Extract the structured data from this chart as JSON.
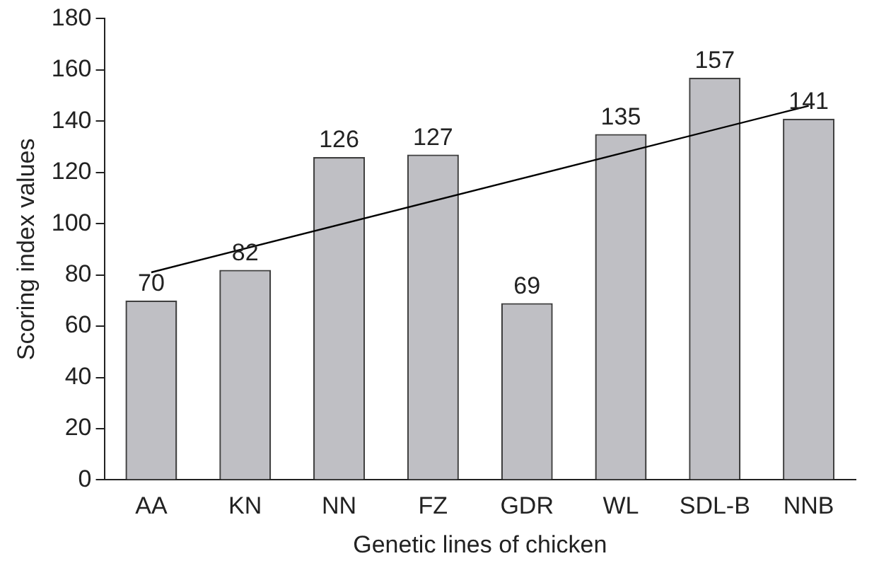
{
  "chart_data": {
    "type": "bar",
    "xlabel": "Genetic lines of chicken",
    "ylabel": "Scoring index values",
    "categories": [
      "AA",
      "KN",
      "NN",
      "FZ",
      "GDR",
      "WL",
      "SDL-B",
      "NNB"
    ],
    "series": [
      {
        "color": "#bfbfc4",
        "values": [
          70,
          82,
          126,
          127,
          69,
          135,
          157,
          141
        ],
        "value_labels": [
          "70",
          "82",
          "126",
          "127",
          "69",
          "135",
          "157",
          "141"
        ]
      },
      {
        "type": "line",
        "color": "#000000",
        "x": [
          "AA",
          "NNB"
        ],
        "values": [
          81,
          146
        ]
      }
    ],
    "ylim": [
      0,
      180
    ],
    "yticks": [
      0,
      20,
      40,
      60,
      80,
      100,
      120,
      140,
      160,
      180
    ],
    "grid": false,
    "legend": false,
    "marker": "none",
    "line_style": "solid"
  }
}
